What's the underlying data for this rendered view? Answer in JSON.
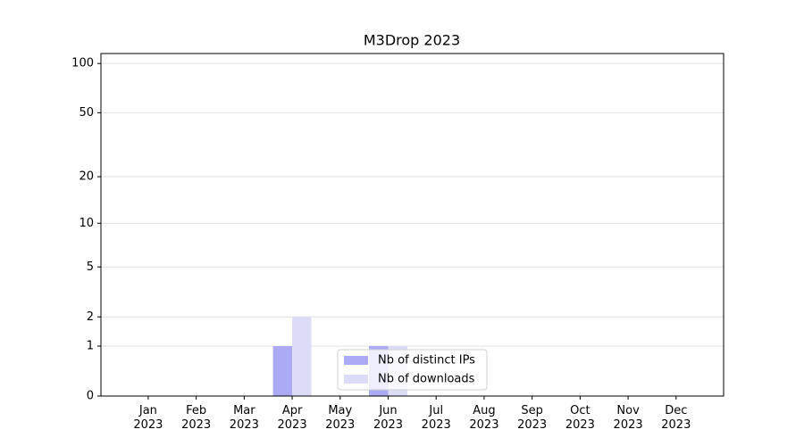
{
  "chart_data": {
    "type": "bar",
    "title": "M3Drop 2023",
    "categories": [
      "Jan\n2023",
      "Feb\n2023",
      "Mar\n2023",
      "Apr\n2023",
      "May\n2023",
      "Jun\n2023",
      "Jul\n2023",
      "Aug\n2023",
      "Sep\n2023",
      "Oct\n2023",
      "Nov\n2023",
      "Dec\n2023"
    ],
    "series": [
      {
        "name": "Nb of distinct IPs",
        "color": "#aaaaf5",
        "values": [
          0,
          0,
          0,
          1,
          0,
          1,
          0,
          0,
          0,
          0,
          0,
          0
        ]
      },
      {
        "name": "Nb of downloads",
        "color": "#dcdcf9",
        "values": [
          0,
          0,
          0,
          2,
          0,
          1,
          0,
          0,
          0,
          0,
          0,
          0
        ]
      }
    ],
    "yscale": "log1p",
    "ylim": [
      0,
      115
    ],
    "yticks": [
      0,
      1,
      2,
      5,
      10,
      20,
      50,
      100
    ],
    "grid": true,
    "legend": "lower center"
  }
}
